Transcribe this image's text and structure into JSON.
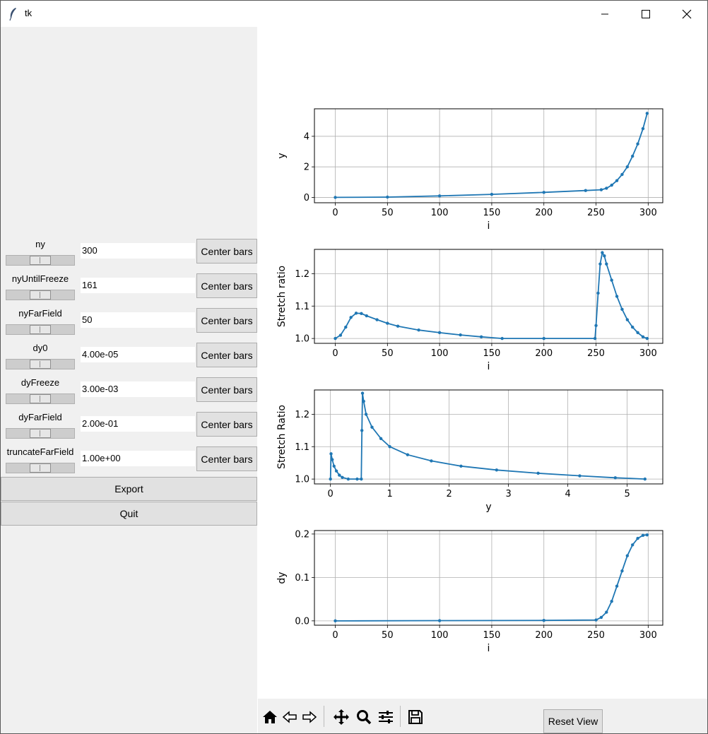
{
  "window": {
    "title": "tk"
  },
  "controls": [
    {
      "label": "ny",
      "value": "300",
      "button": "Center bars"
    },
    {
      "label": "nyUntilFreeze",
      "value": "161",
      "button": "Center bars"
    },
    {
      "label": "nyFarField",
      "value": "50",
      "button": "Center bars"
    },
    {
      "label": "dy0",
      "value": "4.00e-05",
      "button": "Center bars"
    },
    {
      "label": "dyFreeze",
      "value": "3.00e-03",
      "button": "Center bars"
    },
    {
      "label": "dyFarField",
      "value": "2.00e-01",
      "button": "Center bars"
    },
    {
      "label": "truncateFarField",
      "value": "1.00e+00",
      "button": "Center bars"
    }
  ],
  "actions": {
    "export": "Export",
    "quit": "Quit"
  },
  "toolbar": {
    "icons": [
      "home-icon",
      "back-icon",
      "forward-icon",
      "pan-icon",
      "zoom-icon",
      "configure-icon",
      "save-icon"
    ],
    "reset_view": "Reset View"
  },
  "colors": {
    "line": "#1f77b4",
    "panel": "#f0f0f0",
    "button": "#e1e1e1"
  },
  "chart_data": [
    {
      "type": "line",
      "xlabel": "i",
      "ylabel": "y",
      "xlim": [
        -20,
        314
      ],
      "ylim": [
        -0.35,
        5.8
      ],
      "xticks": [
        "0",
        "50",
        "100",
        "150",
        "200",
        "250",
        "300"
      ],
      "yticks": [
        "0",
        "2",
        "4"
      ],
      "series": [
        {
          "x": [
            0,
            50,
            100,
            150,
            200,
            240,
            255,
            260,
            265,
            270,
            275,
            280,
            285,
            290,
            295,
            299
          ],
          "y": [
            0,
            0.02,
            0.1,
            0.2,
            0.33,
            0.45,
            0.5,
            0.6,
            0.8,
            1.1,
            1.5,
            2.0,
            2.7,
            3.5,
            4.5,
            5.5
          ]
        }
      ],
      "grid": true
    },
    {
      "type": "line",
      "xlabel": "i",
      "ylabel": "Stretch ratio",
      "xlim": [
        -20,
        314
      ],
      "ylim": [
        0.985,
        1.275
      ],
      "xticks": [
        "0",
        "50",
        "100",
        "150",
        "200",
        "250",
        "300"
      ],
      "yticks": [
        "1.0",
        "1.1",
        "1.2"
      ],
      "series": [
        {
          "x": [
            0,
            5,
            10,
            15,
            20,
            25,
            30,
            40,
            50,
            60,
            80,
            100,
            120,
            140,
            160,
            200,
            249,
            250,
            252,
            254,
            256,
            258,
            260,
            265,
            270,
            275,
            280,
            285,
            290,
            295,
            299
          ],
          "y": [
            1.0,
            1.01,
            1.035,
            1.065,
            1.078,
            1.077,
            1.07,
            1.058,
            1.047,
            1.038,
            1.026,
            1.018,
            1.011,
            1.005,
            1.0,
            1.0,
            1.0,
            1.04,
            1.14,
            1.23,
            1.265,
            1.255,
            1.23,
            1.18,
            1.13,
            1.09,
            1.058,
            1.035,
            1.018,
            1.005,
            1.0
          ]
        }
      ],
      "grid": true
    },
    {
      "type": "line",
      "xlabel": "y",
      "ylabel": "Stretch Ratio",
      "xlim": [
        -0.27,
        5.6
      ],
      "ylim": [
        0.985,
        1.275
      ],
      "xticks": [
        "0",
        "1",
        "2",
        "3",
        "4",
        "5"
      ],
      "yticks": [
        "1.0",
        "1.1",
        "1.2"
      ],
      "series": [
        {
          "x": [
            0,
            0.01,
            0.03,
            0.06,
            0.1,
            0.15,
            0.2,
            0.3,
            0.45,
            0.52,
            0.53,
            0.54,
            0.56,
            0.6,
            0.7,
            0.85,
            1.0,
            1.3,
            1.7,
            2.2,
            2.8,
            3.5,
            4.2,
            4.8,
            5.3
          ],
          "y": [
            1.0,
            1.078,
            1.06,
            1.04,
            1.025,
            1.012,
            1.005,
            1.0,
            1.0,
            1.0,
            1.15,
            1.265,
            1.24,
            1.2,
            1.16,
            1.125,
            1.1,
            1.075,
            1.056,
            1.04,
            1.028,
            1.018,
            1.01,
            1.004,
            1.0
          ]
        }
      ],
      "grid": true
    },
    {
      "type": "line",
      "xlabel": "i",
      "ylabel": "dy",
      "xlim": [
        -20,
        314
      ],
      "ylim": [
        -0.01,
        0.208
      ],
      "xticks": [
        "0",
        "50",
        "100",
        "150",
        "200",
        "250",
        "300"
      ],
      "yticks": [
        "0.0",
        "0.1",
        "0.2"
      ],
      "series": [
        {
          "x": [
            0,
            100,
            200,
            250,
            255,
            260,
            265,
            270,
            275,
            280,
            285,
            290,
            295,
            299
          ],
          "y": [
            0,
            0.0005,
            0.001,
            0.002,
            0.008,
            0.02,
            0.045,
            0.08,
            0.115,
            0.15,
            0.175,
            0.19,
            0.197,
            0.198
          ]
        }
      ],
      "grid": true
    }
  ]
}
